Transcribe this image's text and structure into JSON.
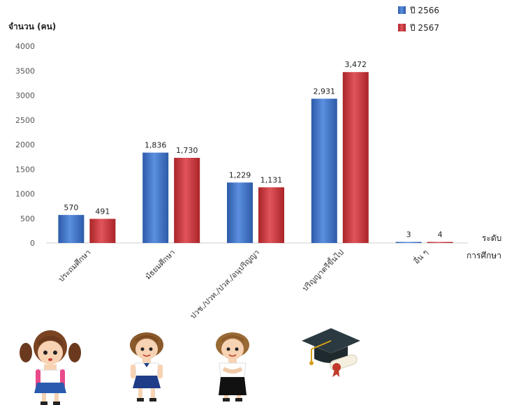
{
  "chart_data": {
    "type": "bar",
    "title": "",
    "ylabel": "จำนวน (คน)",
    "xlabel": [
      "ระดับ",
      "การศึกษา"
    ],
    "categories": [
      "ประถมศึกษา",
      "มัธยมศึกษา",
      "ปวช./ปวท./ปวส./อนุปริญญา",
      "ปริญญาตรีขึ้นไป",
      "อื่น ๆ"
    ],
    "series": [
      {
        "name": "ปี 2566",
        "values": [
          570,
          1836,
          1229,
          2931,
          3
        ],
        "labels": [
          "570",
          "1,836",
          "1,229",
          "2,931",
          "3"
        ],
        "color": "#3a6fc4"
      },
      {
        "name": "ปี 2567",
        "values": [
          491,
          1730,
          1131,
          3472,
          4
        ],
        "labels": [
          "491",
          "1,730",
          "1,131",
          "3,472",
          "4"
        ],
        "color": "#c8373a"
      }
    ],
    "yticks": [
      0,
      500,
      1000,
      1500,
      2000,
      2500,
      3000,
      3500,
      4000
    ],
    "ylim": [
      0,
      4000
    ],
    "grid": false,
    "legend_position": "top-right"
  },
  "illustrations": [
    "primary-student-girl",
    "secondary-student-girl",
    "vocational-student-girl",
    "graduation-cap-diploma"
  ]
}
